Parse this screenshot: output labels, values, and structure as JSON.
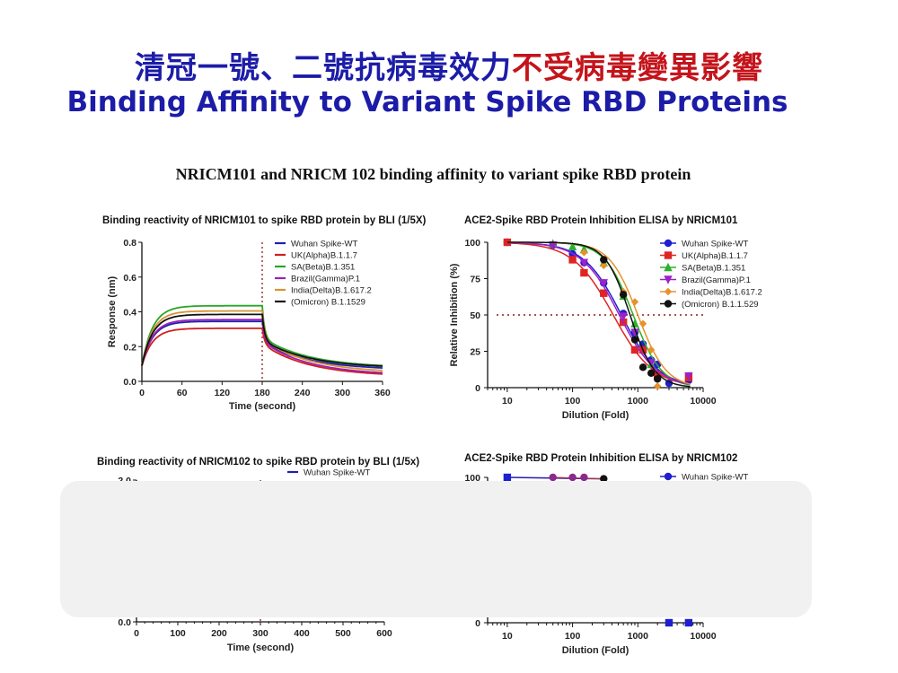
{
  "header": {
    "title_zh_blue": "清冠一號、二號抗病毒效力",
    "title_zh_red": "不受病毒變異影響",
    "title_en": "Binding Affinity to Variant Spike RBD Proteins",
    "figure_title": "NRICM101 and NRICM 102 binding affinity to variant spike RBD protein",
    "colors": {
      "blue": "#1c1ca8",
      "red": "#c4141b"
    }
  },
  "chart_data": [
    {
      "id": "bli101",
      "type": "line",
      "title": "Binding reactivity of NRICM101 to spike RBD protein by BLI (1/5X)",
      "xlabel": "Time (second)",
      "ylabel": "Response (nm)",
      "xlim": [
        0,
        360
      ],
      "ylim": [
        0,
        0.8
      ],
      "xticks": [
        "0",
        "60",
        "120",
        "180",
        "240",
        "300",
        "360"
      ],
      "yticks": [
        "0.0",
        "0.2",
        "0.4",
        "0.6",
        "0.8"
      ],
      "vline_x": 180,
      "legend_position": "top-right",
      "series": [
        {
          "name": "Wuhan Spike-WT",
          "color": "#1f1fb0",
          "plateau": 0.345,
          "end": 0.065
        },
        {
          "name": "UK(Alpha)B.1.1.7",
          "color": "#d01f1f",
          "plateau": 0.305,
          "end": 0.028
        },
        {
          "name": "SA(Beta)B.1.351",
          "color": "#2aa52a",
          "plateau": 0.435,
          "end": 0.078
        },
        {
          "name": "Brazil(Gamma)P.1",
          "color": "#9b22b5",
          "plateau": 0.355,
          "end": 0.035
        },
        {
          "name": "India(Delta)B.1.617.2",
          "color": "#d8932e",
          "plateau": 0.405,
          "end": 0.048
        },
        {
          "name": "(Omicron) B.1.1529",
          "color": "#111111",
          "plateau": 0.385,
          "end": 0.075
        }
      ]
    },
    {
      "id": "elisa101",
      "type": "scatter",
      "title": "ACE2-Spike RBD Protein Inhibition ELISA by NRICM101",
      "xlabel": "Dilution (Fold)",
      "ylabel": "Relative Inhibition (%)",
      "xscale": "log",
      "xlim": [
        5,
        10000
      ],
      "ylim": [
        0,
        100
      ],
      "xticks": [
        "10",
        "100",
        "1000",
        "10000"
      ],
      "yticks": [
        "0",
        "25",
        "50",
        "75",
        "100"
      ],
      "hline_y": 50,
      "legend_position": "top-right",
      "series": [
        {
          "name": "Wuhan Spike-WT",
          "color": "#1f1fd0",
          "marker": "circle",
          "ic50": 560,
          "hill": 1.5,
          "points": [
            [
              10,
              100
            ],
            [
              50,
              98
            ],
            [
              100,
              92
            ],
            [
              150,
              86
            ],
            [
              300,
              72
            ],
            [
              600,
              51
            ],
            [
              900,
              38
            ],
            [
              1200,
              30
            ],
            [
              1600,
              19
            ],
            [
              2000,
              16
            ],
            [
              3000,
              3
            ],
            [
              6000,
              5
            ]
          ]
        },
        {
          "name": "UK(Alpha)B.1.1.7",
          "color": "#e02424",
          "marker": "square",
          "ic50": 420,
          "hill": 1.4,
          "points": [
            [
              10,
              100
            ],
            [
              100,
              88
            ],
            [
              150,
              79
            ],
            [
              300,
              65
            ],
            [
              600,
              45
            ],
            [
              900,
              26
            ],
            [
              1200,
              26
            ],
            [
              2000,
              9
            ],
            [
              6000,
              7
            ]
          ]
        },
        {
          "name": "SA(Beta)B.1.351",
          "color": "#2db02d",
          "marker": "triangle-up",
          "ic50": 850,
          "hill": 2.0,
          "points": [
            [
              50,
              99
            ],
            [
              100,
              97
            ],
            [
              150,
              95
            ],
            [
              300,
              86
            ],
            [
              600,
              63
            ],
            [
              900,
              44
            ],
            [
              1600,
              16
            ]
          ]
        },
        {
          "name": "Brazil(Gamma)P.1",
          "color": "#9b22c8",
          "marker": "triangle-down",
          "ic50": 520,
          "hill": 1.5,
          "points": [
            [
              50,
              98
            ],
            [
              150,
              86
            ],
            [
              300,
              72
            ],
            [
              600,
              49
            ],
            [
              900,
              38
            ],
            [
              1600,
              17
            ],
            [
              6000,
              8
            ]
          ]
        },
        {
          "name": "India(Delta)B.1.617.2",
          "color": "#e6922a",
          "marker": "diamond",
          "ic50": 1000,
          "hill": 2.0,
          "points": [
            [
              150,
              93
            ],
            [
              300,
              84
            ],
            [
              600,
              66
            ],
            [
              900,
              59
            ],
            [
              1200,
              44
            ],
            [
              1600,
              26
            ],
            [
              2000,
              1
            ]
          ]
        },
        {
          "name": "(Omicron) B.1.1.529",
          "color": "#111111",
          "marker": "circle",
          "ic50": 760,
          "hill": 2.3,
          "points": [
            [
              300,
              88
            ],
            [
              600,
              64
            ],
            [
              900,
              33
            ],
            [
              1200,
              14
            ],
            [
              1600,
              10
            ],
            [
              2000,
              6
            ]
          ]
        }
      ]
    },
    {
      "id": "bli102",
      "type": "line",
      "title": "Binding reactivity of NRICM102 to spike RBD protein by BLI (1/5x)",
      "xlabel": "Time (second)",
      "ylabel": "",
      "xlim": [
        0,
        600
      ],
      "ylim": [
        0,
        2.0
      ],
      "xticks": [
        "0",
        "100",
        "200",
        "300",
        "400",
        "500",
        "600"
      ],
      "yticks_visible": [
        "0.0",
        "2.0"
      ],
      "vline_x": 300,
      "legend_position": "top-right",
      "legend_visible": [
        "Wuhan Spike-WT"
      ]
    },
    {
      "id": "elisa102",
      "type": "scatter",
      "title": "ACE2-Spike RBD Protein Inhibition ELISA by NRICM102",
      "xlabel": "Dilution (Fold)",
      "xscale": "log",
      "xlim": [
        5,
        10000
      ],
      "ylim": [
        0,
        100
      ],
      "xticks": [
        "10",
        "100",
        "1000",
        "10000"
      ],
      "yticks_visible": [
        "0",
        "100"
      ],
      "legend_position": "top-right",
      "legend_visible": [
        "Wuhan Spike-WT"
      ],
      "visible_points": [
        [
          10,
          100
        ],
        [
          50,
          100
        ],
        [
          100,
          100
        ],
        [
          150,
          100
        ],
        [
          300,
          99
        ],
        [
          3000,
          0
        ],
        [
          6000,
          0
        ]
      ]
    }
  ]
}
